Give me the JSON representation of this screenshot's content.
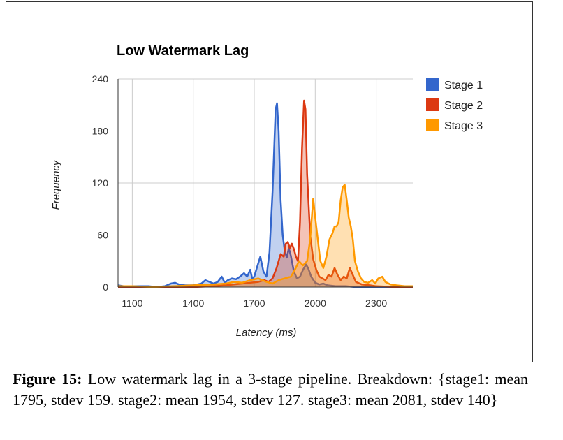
{
  "chart_data": {
    "type": "area",
    "title": "Low Watermark Lag",
    "xlabel": "Latency (ms)",
    "ylabel": "Frequency",
    "xlim": [
      1030,
      2480
    ],
    "ylim": [
      0,
      240
    ],
    "xticks": [
      1100,
      1400,
      1700,
      2000,
      2300
    ],
    "yticks": [
      0,
      60,
      120,
      180,
      240
    ],
    "grid": true,
    "legend_position": "right",
    "series": [
      {
        "name": "Stage 1",
        "color": "#3366cc",
        "points": [
          [
            1030,
            2
          ],
          [
            1060,
            1
          ],
          [
            1100,
            1
          ],
          [
            1140,
            1
          ],
          [
            1180,
            1
          ],
          [
            1220,
            0
          ],
          [
            1260,
            1
          ],
          [
            1290,
            4
          ],
          [
            1310,
            5
          ],
          [
            1330,
            3
          ],
          [
            1360,
            2
          ],
          [
            1400,
            2
          ],
          [
            1440,
            4
          ],
          [
            1460,
            8
          ],
          [
            1480,
            6
          ],
          [
            1500,
            4
          ],
          [
            1520,
            6
          ],
          [
            1540,
            12
          ],
          [
            1555,
            5
          ],
          [
            1570,
            8
          ],
          [
            1590,
            10
          ],
          [
            1610,
            9
          ],
          [
            1630,
            12
          ],
          [
            1650,
            16
          ],
          [
            1665,
            12
          ],
          [
            1680,
            20
          ],
          [
            1690,
            10
          ],
          [
            1700,
            12
          ],
          [
            1715,
            24
          ],
          [
            1730,
            35
          ],
          [
            1745,
            18
          ],
          [
            1760,
            12
          ],
          [
            1775,
            40
          ],
          [
            1790,
            110
          ],
          [
            1805,
            205
          ],
          [
            1812,
            212
          ],
          [
            1820,
            180
          ],
          [
            1830,
            100
          ],
          [
            1840,
            60
          ],
          [
            1850,
            42
          ],
          [
            1860,
            34
          ],
          [
            1870,
            45
          ],
          [
            1880,
            36
          ],
          [
            1895,
            18
          ],
          [
            1910,
            10
          ],
          [
            1925,
            12
          ],
          [
            1940,
            20
          ],
          [
            1955,
            26
          ],
          [
            1965,
            22
          ],
          [
            1980,
            12
          ],
          [
            2000,
            5
          ],
          [
            2020,
            3
          ],
          [
            2040,
            4
          ],
          [
            2060,
            2
          ],
          [
            2100,
            1
          ],
          [
            2150,
            1
          ],
          [
            2200,
            0
          ],
          [
            2300,
            0
          ],
          [
            2480,
            0
          ]
        ]
      },
      {
        "name": "Stage 2",
        "color": "#dc3912",
        "points": [
          [
            1030,
            0
          ],
          [
            1200,
            0
          ],
          [
            1400,
            0
          ],
          [
            1500,
            1
          ],
          [
            1560,
            2
          ],
          [
            1600,
            3
          ],
          [
            1640,
            4
          ],
          [
            1680,
            5
          ],
          [
            1720,
            6
          ],
          [
            1750,
            8
          ],
          [
            1770,
            6
          ],
          [
            1790,
            10
          ],
          [
            1810,
            22
          ],
          [
            1830,
            38
          ],
          [
            1845,
            35
          ],
          [
            1855,
            50
          ],
          [
            1865,
            52
          ],
          [
            1875,
            45
          ],
          [
            1885,
            50
          ],
          [
            1895,
            44
          ],
          [
            1905,
            35
          ],
          [
            1915,
            30
          ],
          [
            1925,
            75
          ],
          [
            1935,
            160
          ],
          [
            1945,
            215
          ],
          [
            1952,
            205
          ],
          [
            1960,
            130
          ],
          [
            1975,
            60
          ],
          [
            1990,
            32
          ],
          [
            2005,
            20
          ],
          [
            2020,
            12
          ],
          [
            2035,
            10
          ],
          [
            2050,
            8
          ],
          [
            2065,
            14
          ],
          [
            2080,
            12
          ],
          [
            2095,
            22
          ],
          [
            2110,
            14
          ],
          [
            2125,
            8
          ],
          [
            2140,
            12
          ],
          [
            2155,
            10
          ],
          [
            2170,
            22
          ],
          [
            2185,
            14
          ],
          [
            2200,
            6
          ],
          [
            2230,
            3
          ],
          [
            2270,
            2
          ],
          [
            2300,
            1
          ],
          [
            2400,
            0
          ],
          [
            2480,
            0
          ]
        ]
      },
      {
        "name": "Stage 3",
        "color": "#ff9900",
        "points": [
          [
            1030,
            1
          ],
          [
            1100,
            1
          ],
          [
            1200,
            0
          ],
          [
            1300,
            1
          ],
          [
            1400,
            2
          ],
          [
            1500,
            3
          ],
          [
            1560,
            4
          ],
          [
            1600,
            6
          ],
          [
            1640,
            5
          ],
          [
            1680,
            8
          ],
          [
            1720,
            10
          ],
          [
            1760,
            6
          ],
          [
            1790,
            4
          ],
          [
            1820,
            8
          ],
          [
            1850,
            10
          ],
          [
            1880,
            12
          ],
          [
            1900,
            20
          ],
          [
            1920,
            30
          ],
          [
            1940,
            25
          ],
          [
            1960,
            30
          ],
          [
            1975,
            55
          ],
          [
            1990,
            102
          ],
          [
            2000,
            80
          ],
          [
            2010,
            60
          ],
          [
            2025,
            30
          ],
          [
            2040,
            22
          ],
          [
            2055,
            35
          ],
          [
            2070,
            55
          ],
          [
            2085,
            62
          ],
          [
            2095,
            70
          ],
          [
            2105,
            70
          ],
          [
            2115,
            75
          ],
          [
            2125,
            100
          ],
          [
            2135,
            115
          ],
          [
            2145,
            118
          ],
          [
            2155,
            100
          ],
          [
            2165,
            80
          ],
          [
            2175,
            70
          ],
          [
            2185,
            55
          ],
          [
            2195,
            30
          ],
          [
            2210,
            18
          ],
          [
            2225,
            10
          ],
          [
            2240,
            6
          ],
          [
            2260,
            5
          ],
          [
            2280,
            8
          ],
          [
            2295,
            4
          ],
          [
            2310,
            10
          ],
          [
            2330,
            12
          ],
          [
            2345,
            6
          ],
          [
            2370,
            3
          ],
          [
            2400,
            2
          ],
          [
            2440,
            1
          ],
          [
            2480,
            1
          ]
        ]
      }
    ]
  },
  "caption": {
    "label": "Figure 15:",
    "text": "Low watermark lag in a 3-stage pipeline. Breakdown: {stage1: mean 1795, stdev 159. stage2: mean 1954, stdev 127. stage3: mean 2081, stdev 140}"
  }
}
